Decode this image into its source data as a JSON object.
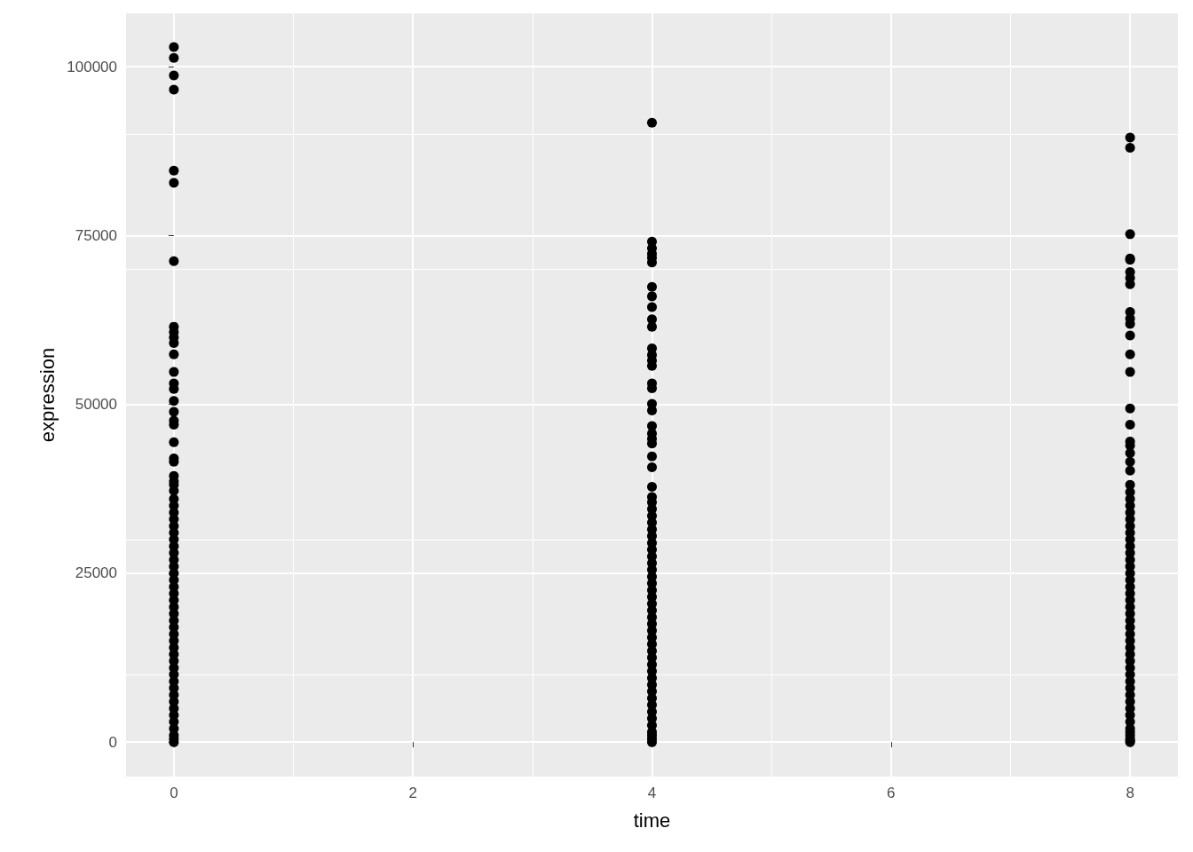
{
  "chart_data": {
    "type": "scatter",
    "xlabel": "time",
    "ylabel": "expression",
    "xlim": [
      -0.4,
      8.4
    ],
    "ylim": [
      -5100,
      107900
    ],
    "xticks": [
      0,
      2,
      4,
      6,
      8
    ],
    "yticks": [
      0,
      25000,
      50000,
      75000,
      100000
    ],
    "grid": true,
    "marker": "circle",
    "series": [
      {
        "color": "#000000",
        "x": [
          0,
          0,
          0,
          0,
          0,
          0,
          0,
          0,
          0,
          0,
          0,
          0,
          0,
          0,
          0,
          0,
          0,
          0,
          0,
          0,
          0,
          0,
          0,
          0,
          0,
          0,
          0,
          0,
          0,
          0,
          0,
          0,
          0,
          0,
          0,
          0,
          0,
          0,
          0,
          0,
          0,
          0,
          0,
          0,
          0,
          0,
          0,
          0,
          0,
          0,
          0,
          0,
          0,
          0,
          0,
          0,
          0,
          0,
          0,
          0,
          0,
          0,
          0,
          0
        ],
        "values": [
          102900,
          101300,
          98700,
          96600,
          84600,
          82800,
          71200,
          61500,
          60700,
          59900,
          59100,
          57400,
          54800,
          53100,
          52300,
          50500,
          48900,
          47600,
          47000,
          44400,
          42000,
          41500,
          39400,
          38600,
          38100,
          37200,
          36000,
          35000,
          34000,
          33000,
          32000,
          31000,
          30000,
          29000,
          28000,
          27000,
          26000,
          25000,
          24000,
          23000,
          22000,
          21000,
          20000,
          19000,
          18000,
          17000,
          16000,
          15000,
          14000,
          13000,
          12000,
          11000,
          10000,
          9000,
          8000,
          7000,
          6000,
          5000,
          4000,
          3000,
          2000,
          1000,
          500,
          0
        ]
      },
      {
        "color": "#000000",
        "x": [
          4,
          4,
          4,
          4,
          4,
          4,
          4,
          4,
          4,
          4,
          4,
          4,
          4,
          4,
          4,
          4,
          4,
          4,
          4,
          4,
          4,
          4,
          4,
          4,
          4,
          4,
          4,
          4,
          4,
          4,
          4,
          4,
          4,
          4,
          4,
          4,
          4,
          4,
          4,
          4,
          4,
          4,
          4,
          4,
          4,
          4,
          4,
          4,
          4,
          4,
          4,
          4,
          4,
          4,
          4,
          4,
          4,
          4,
          4,
          4,
          4,
          4,
          4,
          4,
          4
        ],
        "values": [
          91700,
          74100,
          73100,
          72300,
          71700,
          71000,
          67400,
          66000,
          64400,
          62600,
          61500,
          58300,
          57300,
          56500,
          55700,
          53100,
          52400,
          50100,
          49100,
          46800,
          45700,
          44900,
          44200,
          42300,
          40700,
          37800,
          36300,
          35500,
          34500,
          33500,
          32500,
          31500,
          30500,
          29500,
          28500,
          27500,
          26500,
          25500,
          24500,
          23500,
          22500,
          21500,
          20500,
          19500,
          18500,
          17500,
          16500,
          15500,
          14500,
          13500,
          12500,
          11500,
          10500,
          9500,
          8500,
          7500,
          6500,
          5500,
          4500,
          3500,
          2500,
          1500,
          1000,
          500,
          0
        ]
      },
      {
        "color": "#000000",
        "x": [
          8,
          8,
          8,
          8,
          8,
          8,
          8,
          8,
          8,
          8,
          8,
          8,
          8,
          8,
          8,
          8,
          8,
          8,
          8,
          8,
          8,
          8,
          8,
          8,
          8,
          8,
          8,
          8,
          8,
          8,
          8,
          8,
          8,
          8,
          8,
          8,
          8,
          8,
          8,
          8,
          8,
          8,
          8,
          8,
          8,
          8,
          8,
          8,
          8,
          8,
          8,
          8,
          8,
          8,
          8,
          8,
          8,
          8,
          8,
          8,
          8,
          8,
          8
        ],
        "values": [
          89500,
          88000,
          75200,
          71600,
          71400,
          69600,
          68700,
          67800,
          63700,
          62700,
          61900,
          60200,
          57400,
          54800,
          49400,
          47000,
          44500,
          43900,
          42800,
          41500,
          40200,
          38100,
          37000,
          36000,
          35000,
          34000,
          33000,
          32000,
          31000,
          30000,
          29000,
          28000,
          27000,
          26000,
          25000,
          24000,
          23000,
          22000,
          21000,
          20000,
          19000,
          18000,
          17000,
          16000,
          15000,
          14000,
          13000,
          12000,
          11000,
          10000,
          9000,
          8000,
          7000,
          6000,
          5000,
          4000,
          3000,
          2000,
          1500,
          1000,
          500,
          200,
          0
        ]
      }
    ]
  }
}
